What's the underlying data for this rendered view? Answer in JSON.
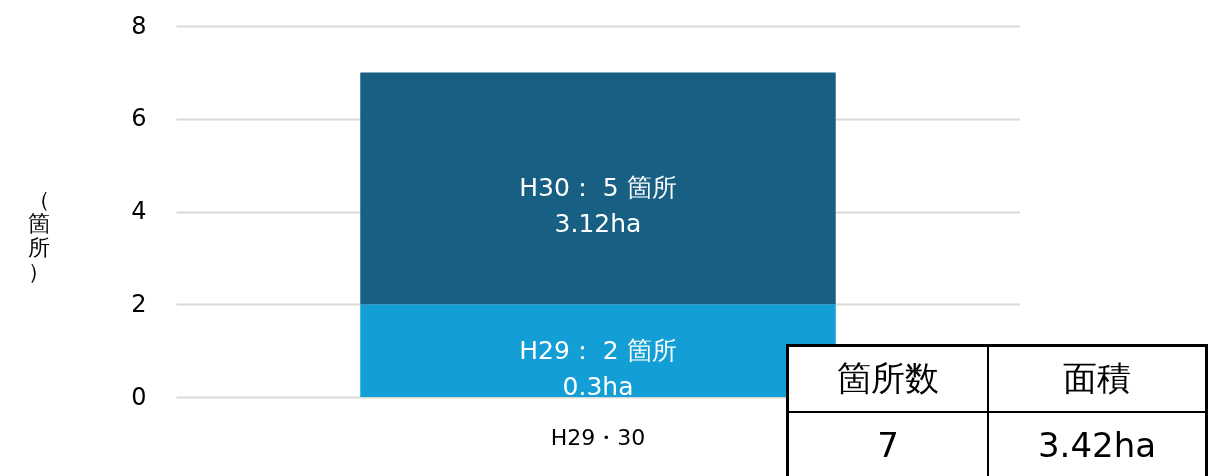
{
  "chart_data": [
    {
      "type": "bar",
      "stacked": true,
      "ylabel": "（箇所）",
      "categories": [
        "H29・30"
      ],
      "ylim": [
        0,
        8
      ],
      "yticks": [
        0,
        2,
        4,
        6,
        8
      ],
      "grid": "y",
      "legend": false,
      "series": [
        {
          "color": "#139fd6",
          "values": [
            2
          ],
          "value_labels": [
            "H29： 2 箇所\n0.3ha"
          ]
        },
        {
          "color": "#176083",
          "values": [
            5
          ],
          "value_labels": [
            "H30： 5 箇所\n3.12ha"
          ]
        }
      ]
    },
    {
      "type": "other",
      "annotations": [
        "箇所数",
        "面積",
        "7",
        "3.42ha"
      ]
    }
  ]
}
